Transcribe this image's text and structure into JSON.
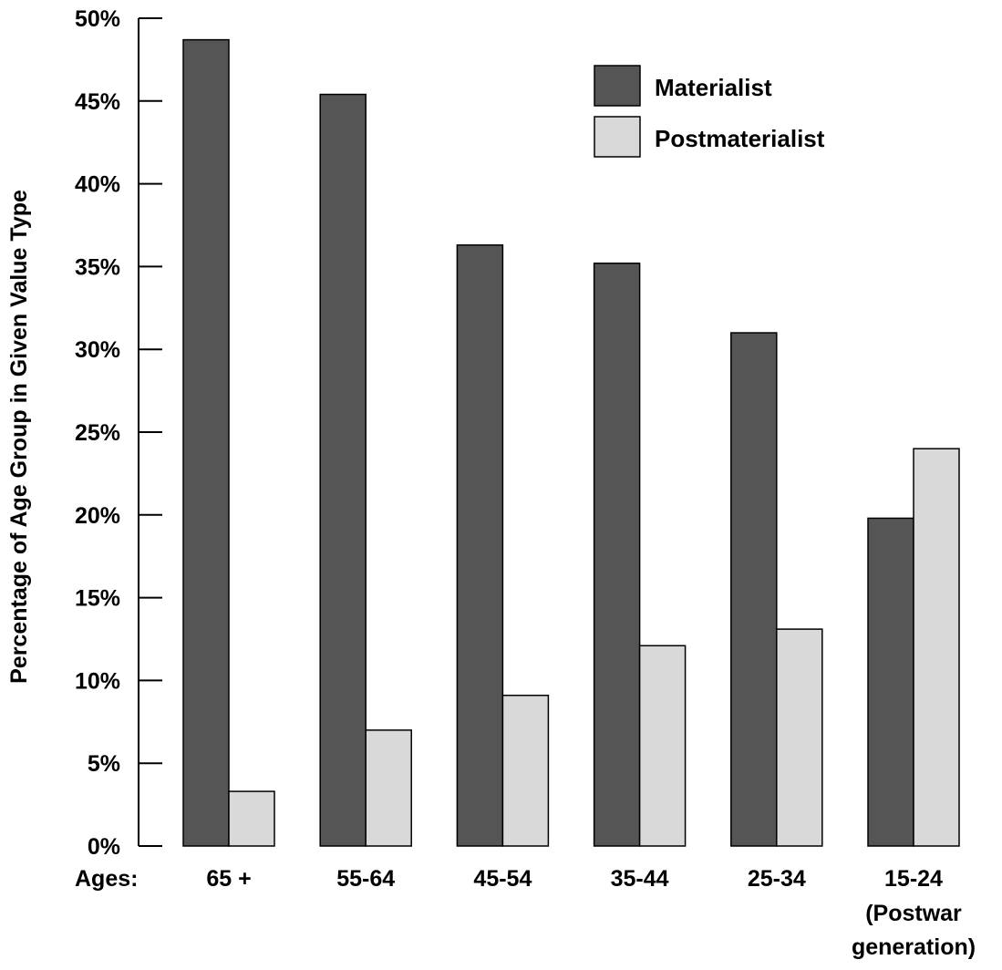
{
  "chart_data": {
    "type": "bar",
    "title": "",
    "xlabel": "Ages:",
    "ylabel": "Percentage of Age Group in Given Value Type",
    "ylim": [
      0,
      50
    ],
    "yticks": [
      "0%",
      "5%",
      "10%",
      "15%",
      "20%",
      "25%",
      "30%",
      "35%",
      "40%",
      "45%",
      "50%"
    ],
    "categories": [
      "65 +",
      "55-64",
      "45-54",
      "35-44",
      "25-34",
      "15-24"
    ],
    "category_sublabels": [
      "",
      "",
      "",
      "",
      "",
      "(Postwar\ngeneration)"
    ],
    "series": [
      {
        "name": "Materialist",
        "color": "#555555",
        "values": [
          48.7,
          45.4,
          36.3,
          35.2,
          31.0,
          19.8
        ]
      },
      {
        "name": "Postmaterialist",
        "color": "#d9d9d9",
        "values": [
          3.3,
          7.0,
          9.1,
          12.1,
          13.1,
          24.0
        ]
      }
    ],
    "legend": "top-right",
    "grid": false
  }
}
